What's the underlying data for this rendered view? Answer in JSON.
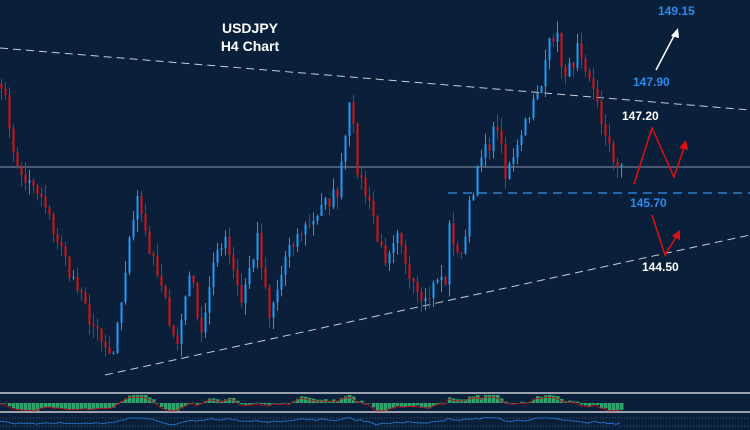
{
  "chart_data": {
    "type": "candlestick",
    "title": "USDJPY",
    "subtitle": "H4 Chart",
    "symbol": "USDJPY",
    "timeframe": "H4",
    "colors": {
      "bull": "#1e9bf0",
      "bear": "#e01010",
      "background": "#0a1f3a",
      "target_blue": "#2a8cf0",
      "label_white": "#ffffff"
    },
    "price_path_anchors": [
      [
        0,
        147.96
      ],
      [
        4,
        146.16
      ],
      [
        10,
        145.56
      ],
      [
        15,
        144.56
      ],
      [
        20,
        143.56
      ],
      [
        25,
        142.66
      ],
      [
        28,
        142.36
      ],
      [
        31,
        144.16
      ],
      [
        34,
        145.76
      ],
      [
        37,
        144.56
      ],
      [
        40,
        143.76
      ],
      [
        44,
        142.66
      ],
      [
        47,
        144.16
      ],
      [
        50,
        142.96
      ],
      [
        54,
        144.56
      ],
      [
        56,
        144.86
      ],
      [
        60,
        143.56
      ],
      [
        64,
        144.76
      ],
      [
        67,
        143.16
      ],
      [
        71,
        144.36
      ],
      [
        75,
        144.96
      ],
      [
        80,
        145.36
      ],
      [
        84,
        145.76
      ],
      [
        86,
        146.96
      ],
      [
        87,
        147.66
      ],
      [
        89,
        146.16
      ],
      [
        92,
        145.56
      ],
      [
        96,
        144.16
      ],
      [
        99,
        144.76
      ],
      [
        102,
        144.16
      ],
      [
        106,
        143.56
      ],
      [
        109,
        143.96
      ],
      [
        111,
        143.96
      ],
      [
        112,
        144.96
      ],
      [
        115,
        144.36
      ],
      [
        117,
        145.56
      ],
      [
        120,
        146.36
      ],
      [
        124,
        147.06
      ],
      [
        126,
        145.96
      ],
      [
        129,
        146.76
      ],
      [
        132,
        147.36
      ],
      [
        135,
        147.76
      ],
      [
        137,
        148.96
      ],
      [
        139,
        148.76
      ],
      [
        141,
        147.96
      ],
      [
        144,
        148.56
      ],
      [
        146,
        147.96
      ],
      [
        149,
        147.56
      ],
      [
        151,
        146.76
      ],
      [
        153,
        146.36
      ],
      [
        155,
        146.26
      ]
    ],
    "current_price_line": 146.26,
    "levels": [
      {
        "label": "149.15",
        "role": "target",
        "color": "#2a8cf0"
      },
      {
        "label": "147.90",
        "role": "resistance",
        "color": "#2a8cf0"
      },
      {
        "label": "147.20",
        "role": "resistance",
        "color": "#ffffff"
      },
      {
        "label": "145.70",
        "role": "support",
        "color": "#2a8cf0"
      },
      {
        "label": "144.50",
        "role": "support",
        "color": "#ffffff"
      }
    ],
    "trendlines": [
      "descending resistance (dashed white)",
      "ascending support (dashed white)"
    ],
    "indicators": [
      "oscillator histogram with signal line",
      "line oscillator"
    ]
  }
}
